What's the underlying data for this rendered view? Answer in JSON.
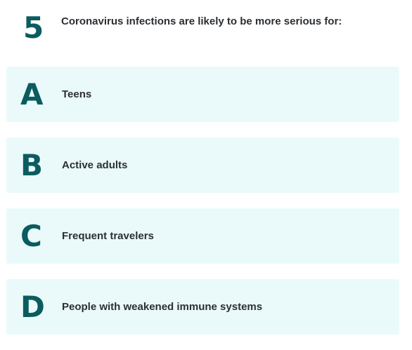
{
  "question": {
    "number": "5",
    "text": "Coronavirus infections are likely to be more serious for:"
  },
  "options": [
    {
      "letter": "A",
      "text": "Teens"
    },
    {
      "letter": "B",
      "text": "Active adults"
    },
    {
      "letter": "C",
      "text": "Frequent travelers"
    },
    {
      "letter": "D",
      "text": "People with weakened immune systems"
    }
  ],
  "colors": {
    "accent": "#0a5c5f",
    "option_background": "#eafafa",
    "text": "#2b2f33"
  }
}
